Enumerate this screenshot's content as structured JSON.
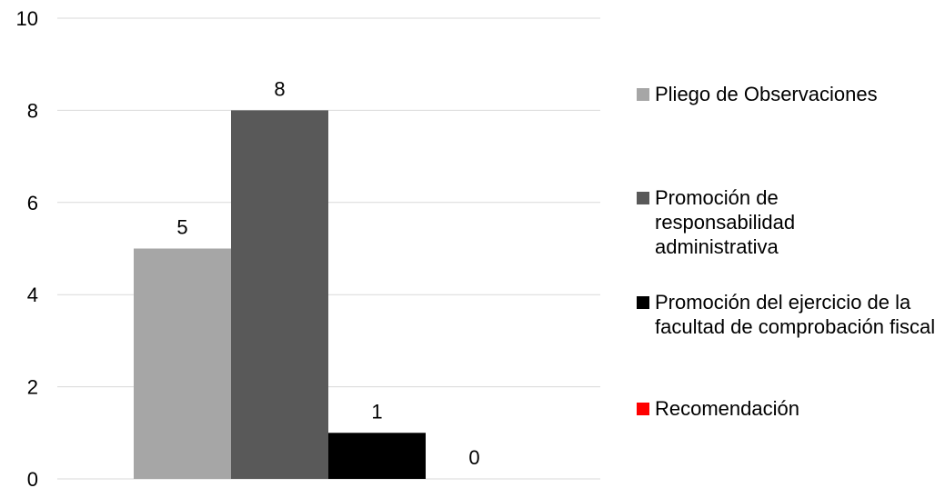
{
  "chart_data": {
    "type": "bar",
    "categories": [
      ""
    ],
    "series": [
      {
        "name": "Pliego de Observaciones",
        "values": [
          5
        ],
        "color": "#a6a6a6"
      },
      {
        "name": "Promoción de responsabilidad administrativa",
        "values": [
          8
        ],
        "color": "#595959"
      },
      {
        "name": "Promoción del ejercicio de la facultad de comprobación fiscal",
        "values": [
          1
        ],
        "color": "#000000"
      },
      {
        "name": "Recomendación",
        "values": [
          0
        ],
        "color": "#ff0000"
      }
    ],
    "ylim": [
      0,
      10
    ],
    "yticks": [
      "0",
      "2",
      "4",
      "6",
      "8",
      "10"
    ],
    "grid": true,
    "legend": "right",
    "data_labels": [
      "5",
      "8",
      "1",
      "0"
    ]
  }
}
